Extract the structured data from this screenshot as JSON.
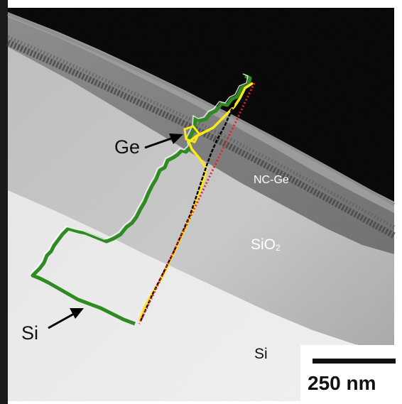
{
  "labels": {
    "ge": "Ge",
    "si_arrow": "Si",
    "nc_ge": "NC-Ge",
    "sio2_base": "SiO",
    "sio2_sub": "2",
    "si_region": "Si"
  },
  "scalebar": {
    "label": "250 nm"
  },
  "colors": {
    "profile_green": "#2e8b22",
    "profile_yellow": "#ffe81a",
    "profile_red": "#e8202a",
    "profile_black": "#000000",
    "arrow": "#000000"
  }
}
